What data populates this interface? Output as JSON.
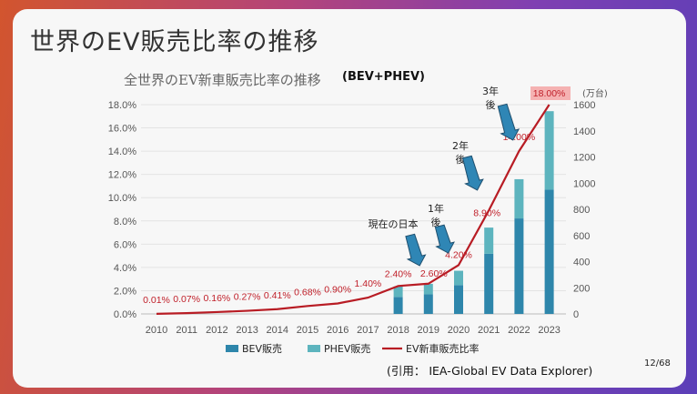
{
  "slide": {
    "title": "世界のEV販売比率の推移",
    "page": "12/68",
    "source": "(引用： IEA-Global EV Data Explorer)"
  },
  "colors": {
    "bev": "#2e86ab",
    "phev": "#5db4be",
    "line": "#b81c24",
    "arrow": "#2f86b5",
    "highlight": "#f4a6a6"
  },
  "chart_data": {
    "type": "bar",
    "title": "全世界のEV新車販売比率の推移",
    "subtitle": "(BEV+PHEV)",
    "categories": [
      "2010",
      "2011",
      "2012",
      "2013",
      "2014",
      "2015",
      "2016",
      "2017",
      "2018",
      "2019",
      "2020",
      "2021",
      "2022",
      "2023"
    ],
    "series": [
      {
        "name": "BEV販売",
        "type": "bar",
        "axis": "right",
        "values": [
          0,
          0,
          0,
          0,
          0,
          0,
          0,
          0,
          130,
          150,
          220,
          460,
          730,
          950
        ]
      },
      {
        "name": "PHEV販売",
        "type": "bar",
        "axis": "right",
        "values": [
          0,
          0,
          0,
          0,
          0,
          0,
          0,
          0,
          80,
          80,
          110,
          200,
          300,
          600
        ]
      },
      {
        "name": "EV新車販売比率",
        "type": "line",
        "axis": "left",
        "values": [
          0.01,
          0.07,
          0.16,
          0.27,
          0.41,
          0.68,
          0.9,
          1.4,
          2.4,
          2.6,
          4.2,
          8.9,
          14.0,
          18.0
        ]
      }
    ],
    "data_labels": [
      "0.01%",
      "0.07%",
      "0.16%",
      "0.27%",
      "0.41%",
      "0.68%",
      "0.90%",
      "1.40%",
      "2.40%",
      "2.60%",
      "4.20%",
      "8.90%",
      "14.00%",
      "18.00%"
    ],
    "left_axis": {
      "ticks": [
        "0.0%",
        "2.0%",
        "4.0%",
        "6.0%",
        "8.0%",
        "10.0%",
        "12.0%",
        "14.0%",
        "16.0%",
        "18.0%"
      ],
      "ylim": [
        0,
        18
      ]
    },
    "right_axis": {
      "unit": "(万台)",
      "ticks": [
        "0",
        "200",
        "400",
        "600",
        "800",
        "1000",
        "1200",
        "1400",
        "1600"
      ],
      "ylim": [
        0,
        1600
      ]
    },
    "legend": {
      "position": "bottom"
    },
    "annotations": [
      {
        "text": "現在の日本",
        "year": "2019"
      },
      {
        "text": "1年後",
        "year": "2020"
      },
      {
        "text": "2年後",
        "year": "2021"
      },
      {
        "text": "3年後",
        "year": "2022"
      }
    ]
  }
}
